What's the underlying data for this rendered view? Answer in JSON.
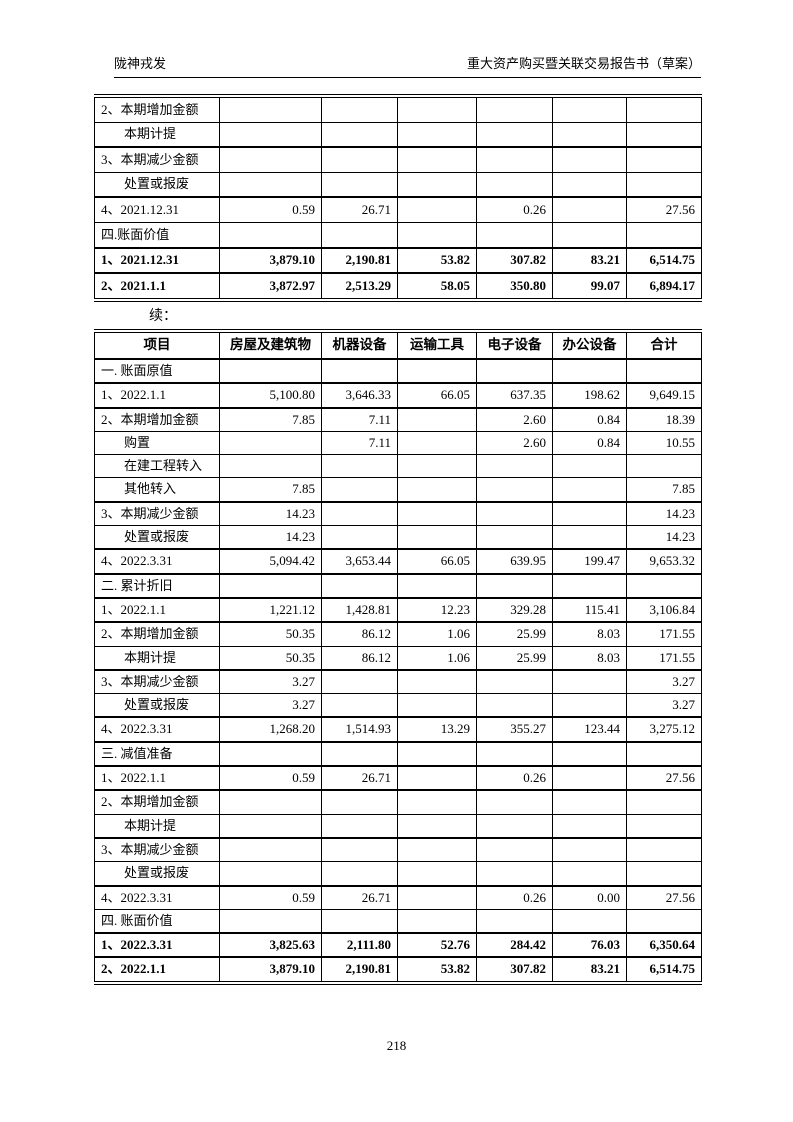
{
  "page": {
    "header_left": "陇神戎发",
    "header_right": "重大资产购买暨关联交易报告书（草案）",
    "continuation_label": "续：",
    "footer_page_number": "218"
  },
  "table1": {
    "rows": [
      {
        "label": "2、本期增加金额",
        "values": [
          "",
          "",
          "",
          "",
          "",
          ""
        ]
      },
      {
        "label": "本期计提",
        "sub": true,
        "thin": true,
        "values": [
          "",
          "",
          "",
          "",
          "",
          ""
        ]
      },
      {
        "label": "3、本期减少金额",
        "values": [
          "",
          "",
          "",
          "",
          "",
          ""
        ]
      },
      {
        "label": "处置或报废",
        "sub": true,
        "thin": true,
        "values": [
          "",
          "",
          "",
          "",
          "",
          ""
        ]
      },
      {
        "label": "4、2021.12.31",
        "values": [
          "0.59",
          "26.71",
          "",
          "0.26",
          "",
          "27.56"
        ]
      },
      {
        "label": "四.账面价值",
        "thin": true,
        "values": [
          "",
          "",
          "",
          "",
          "",
          ""
        ]
      },
      {
        "label": "1、2021.12.31",
        "bold": true,
        "values": [
          "3,879.10",
          "2,190.81",
          "53.82",
          "307.82",
          "83.21",
          "6,514.75"
        ]
      },
      {
        "label": "2、2021.1.1",
        "bold": true,
        "values": [
          "3,872.97",
          "2,513.29",
          "58.05",
          "350.80",
          "99.07",
          "6,894.17"
        ]
      }
    ]
  },
  "table2": {
    "headers": [
      "项目",
      "房屋及建筑物",
      "机器设备",
      "运输工具",
      "电子设备",
      "办公设备",
      "合计"
    ],
    "rows": [
      {
        "label": "一. 账面原值",
        "values": [
          "",
          "",
          "",
          "",
          "",
          ""
        ]
      },
      {
        "label": "1、2022.1.1",
        "values": [
          "5,100.80",
          "3,646.33",
          "66.05",
          "637.35",
          "198.62",
          "9,649.15"
        ]
      },
      {
        "label": "2、本期增加金额",
        "values": [
          "7.85",
          "7.11",
          "",
          "2.60",
          "0.84",
          "18.39"
        ]
      },
      {
        "label": "购置",
        "sub": true,
        "thin": true,
        "values": [
          "",
          "7.11",
          "",
          "2.60",
          "0.84",
          "10.55"
        ]
      },
      {
        "label": "在建工程转入",
        "sub": true,
        "thin": true,
        "values": [
          "",
          "",
          "",
          "",
          "",
          ""
        ]
      },
      {
        "label": "其他转入",
        "sub": true,
        "thin": true,
        "values": [
          "7.85",
          "",
          "",
          "",
          "",
          "7.85"
        ]
      },
      {
        "label": "3、本期减少金额",
        "values": [
          "14.23",
          "",
          "",
          "",
          "",
          "14.23"
        ]
      },
      {
        "label": "处置或报废",
        "sub": true,
        "thin": true,
        "values": [
          "14.23",
          "",
          "",
          "",
          "",
          "14.23"
        ]
      },
      {
        "label": "4、2022.3.31",
        "values": [
          "5,094.42",
          "3,653.44",
          "66.05",
          "639.95",
          "199.47",
          "9,653.32"
        ]
      },
      {
        "label": "二. 累计折旧",
        "values": [
          "",
          "",
          "",
          "",
          "",
          ""
        ]
      },
      {
        "label": "1、2022.1.1",
        "values": [
          "1,221.12",
          "1,428.81",
          "12.23",
          "329.28",
          "115.41",
          "3,106.84"
        ]
      },
      {
        "label": "2、本期增加金额",
        "values": [
          "50.35",
          "86.12",
          "1.06",
          "25.99",
          "8.03",
          "171.55"
        ]
      },
      {
        "label": "本期计提",
        "sub": true,
        "thin": true,
        "values": [
          "50.35",
          "86.12",
          "1.06",
          "25.99",
          "8.03",
          "171.55"
        ]
      },
      {
        "label": "3、本期减少金额",
        "values": [
          "3.27",
          "",
          "",
          "",
          "",
          "3.27"
        ]
      },
      {
        "label": "处置或报废",
        "sub": true,
        "thin": true,
        "values": [
          "3.27",
          "",
          "",
          "",
          "",
          "3.27"
        ]
      },
      {
        "label": "4、2022.3.31",
        "values": [
          "1,268.20",
          "1,514.93",
          "13.29",
          "355.27",
          "123.44",
          "3,275.12"
        ]
      },
      {
        "label": "三. 减值准备",
        "values": [
          "",
          "",
          "",
          "",
          "",
          ""
        ]
      },
      {
        "label": "1、2022.1.1",
        "values": [
          "0.59",
          "26.71",
          "",
          "0.26",
          "",
          "27.56"
        ]
      },
      {
        "label": "2、本期增加金额",
        "values": [
          "",
          "",
          "",
          "",
          "",
          ""
        ]
      },
      {
        "label": "本期计提",
        "sub": true,
        "thin": true,
        "values": [
          "",
          "",
          "",
          "",
          "",
          ""
        ]
      },
      {
        "label": "3、本期减少金额",
        "values": [
          "",
          "",
          "",
          "",
          "",
          ""
        ]
      },
      {
        "label": "处置或报废",
        "sub": true,
        "thin": true,
        "values": [
          "",
          "",
          "",
          "",
          "",
          ""
        ]
      },
      {
        "label": "4、2022.3.31",
        "values": [
          "0.59",
          "26.71",
          "",
          "0.26",
          "0.00",
          "27.56"
        ]
      },
      {
        "label": "四. 账面价值",
        "thin": true,
        "values": [
          "",
          "",
          "",
          "",
          "",
          ""
        ]
      },
      {
        "label": "1、2022.3.31",
        "bold": true,
        "values": [
          "3,825.63",
          "2,111.80",
          "52.76",
          "284.42",
          "76.03",
          "6,350.64"
        ]
      },
      {
        "label": "2、2022.1.1",
        "bold": true,
        "values": [
          "3,879.10",
          "2,190.81",
          "53.82",
          "307.82",
          "83.21",
          "6,514.75"
        ]
      }
    ]
  }
}
